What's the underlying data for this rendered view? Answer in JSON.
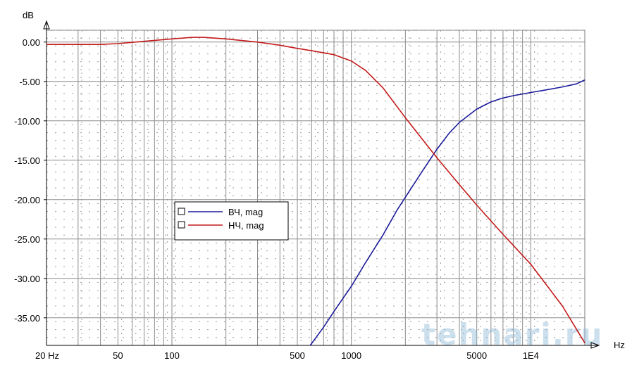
{
  "chart_data": {
    "type": "line",
    "title": "",
    "xlabel": "",
    "ylabel": "",
    "x_unit": "Hz",
    "y_unit": "dB",
    "x_scale": "log",
    "xlim": [
      20,
      20000
    ],
    "ylim": [
      -38.5,
      1.5
    ],
    "x_tick_values": [
      20,
      50,
      100,
      500,
      1000,
      5000,
      10000
    ],
    "x_tick_labels": [
      "20 Hz",
      "50",
      "100",
      "500",
      "1000",
      "5000",
      "1E4"
    ],
    "y_ticks": [
      0,
      -5,
      -10,
      -15,
      -20,
      -25,
      -30,
      -35
    ],
    "y_tick_labels": [
      "0.00",
      "-5.00",
      "-10.00",
      "-15.00",
      "-20.00",
      "-25.00",
      "-30.00",
      "-35.00"
    ],
    "grid": true,
    "legend_position": "center-left",
    "series": [
      {
        "name": "ВЧ, mag",
        "color": "#1c1c9c",
        "x": [
          590,
          700,
          800,
          900,
          1000,
          1200,
          1500,
          1800,
          2000,
          2500,
          3000,
          3500,
          4000,
          5000,
          6000,
          7000,
          8000,
          10000,
          12000,
          15000,
          18000,
          20000
        ],
        "y": [
          -38.5,
          -36.2,
          -34.2,
          -32.5,
          -31.0,
          -28.0,
          -24.5,
          -21.3,
          -19.7,
          -16.3,
          -13.6,
          -11.6,
          -10.2,
          -8.5,
          -7.6,
          -7.1,
          -6.8,
          -6.4,
          -6.1,
          -5.7,
          -5.3,
          -4.8
        ]
      },
      {
        "name": "НЧ, mag",
        "color": "#c41a1a",
        "x": [
          20,
          40,
          50,
          70,
          100,
          130,
          150,
          200,
          300,
          400,
          500,
          600,
          800,
          1000,
          1200,
          1500,
          2000,
          2500,
          3000,
          4000,
          5000,
          7000,
          10000,
          15000,
          20000
        ],
        "y": [
          -0.3,
          -0.3,
          -0.2,
          0.1,
          0.4,
          0.6,
          0.6,
          0.4,
          0.0,
          -0.4,
          -0.8,
          -1.1,
          -1.6,
          -2.4,
          -3.6,
          -5.8,
          -9.6,
          -12.4,
          -14.7,
          -18.1,
          -20.7,
          -24.4,
          -28.2,
          -33.5,
          -38.2
        ]
      }
    ],
    "watermark": "tehnari.ru"
  }
}
